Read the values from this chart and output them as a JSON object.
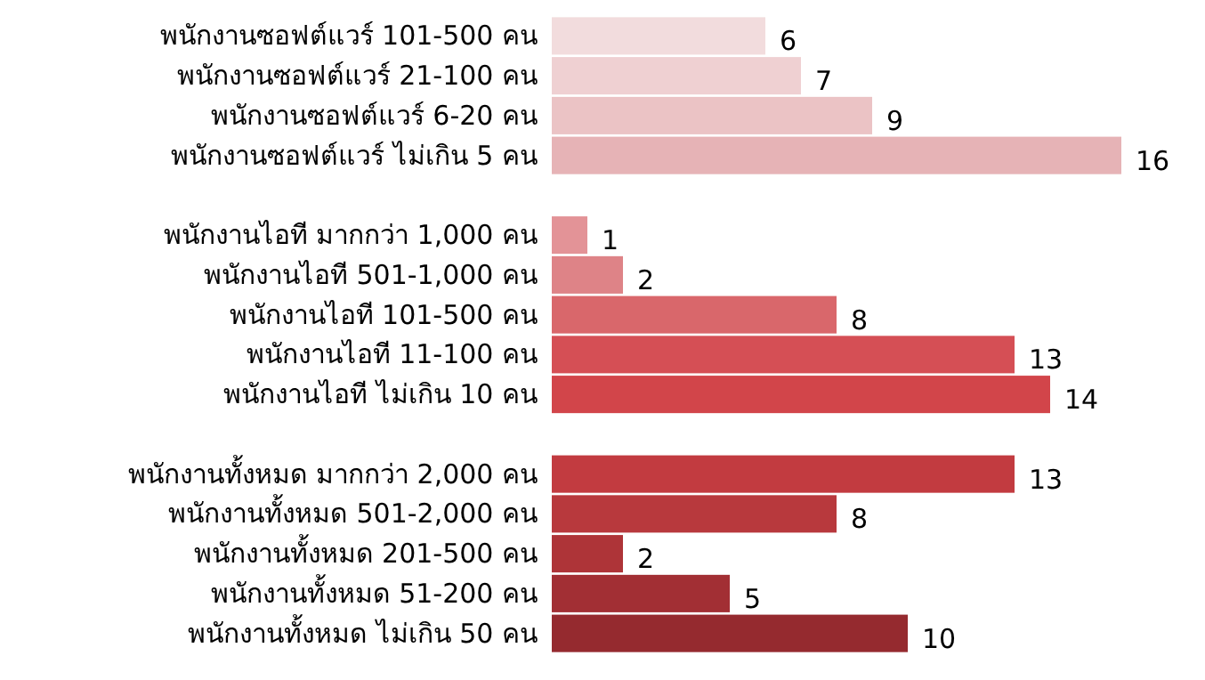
{
  "chart_data": {
    "type": "bar",
    "orientation": "horizontal",
    "data_labels": true,
    "categories": [
      "พนักงานซอฟต์แวร์ 101-500 คน",
      "พนักงานซอฟต์แวร์ 21-100 คน",
      "พนักงานซอฟต์แวร์ 6-20 คน",
      "พนักงานซอฟต์แวร์ ไม่เกิน 5 คน",
      null,
      "พนักงานไอที มากกว่า 1,000 คน",
      "พนักงานไอที 501-1,000 คน",
      "พนักงานไอที 101-500 คน",
      "พนักงานไอที 11-100 คน",
      "พนักงานไอที ไม่เกิน 10 คน",
      null,
      "พนักงานทั้งหมด มากกว่า 2,000 คน",
      "พนักงานทั้งหมด 501-2,000 คน",
      "พนักงานทั้งหมด 201-500 คน",
      "พนักงานทั้งหมด 51-200 คน",
      "พนักงานทั้งหมด ไม่เกิน 50 คน"
    ],
    "values": [
      6,
      7,
      9,
      16,
      null,
      1,
      2,
      8,
      13,
      14,
      null,
      13,
      8,
      2,
      5,
      10
    ],
    "colors": [
      "#f2dcdd",
      "#efd0d2",
      "#ebc3c5",
      "#e6b3b6",
      null,
      "#e39397",
      "#de8387",
      "#d9676b",
      "#d54f55",
      "#d2454a",
      null,
      "#c23b40",
      "#b8393d",
      "#ae3438",
      "#a22f34",
      "#952a2f"
    ]
  }
}
